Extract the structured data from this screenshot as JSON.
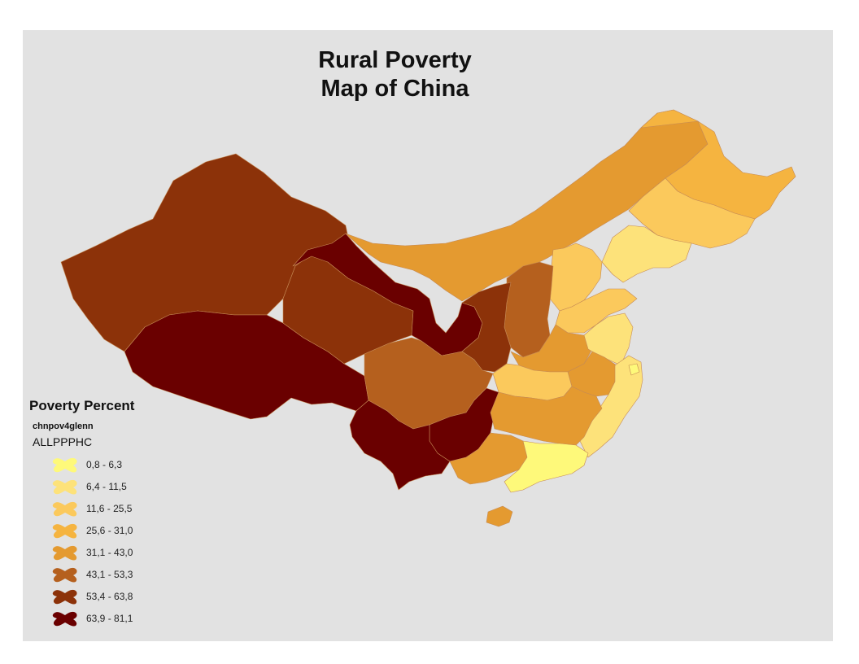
{
  "title": {
    "line1": "Rural Poverty",
    "line2": "Map of China"
  },
  "legend": {
    "heading": "Poverty Percent",
    "layer": "chnpov4glenn",
    "field": "ALLPPPHC",
    "classes": [
      {
        "label": "0,8 - 6,3",
        "color": "#fef97a"
      },
      {
        "label": "6,4 - 11,5",
        "color": "#fde27a"
      },
      {
        "label": "11,6 - 25,5",
        "color": "#fbc95c"
      },
      {
        "label": "25,6 - 31,0",
        "color": "#f5b440"
      },
      {
        "label": "31,1 - 43,0",
        "color": "#e49a30"
      },
      {
        "label": "43,1 - 53,3",
        "color": "#b5601e"
      },
      {
        "label": "53,4 - 63,8",
        "color": "#8c3209"
      },
      {
        "label": "63,9 - 81,1",
        "color": "#6a0000"
      }
    ]
  },
  "colors": {
    "background": "#e2e2e2",
    "border": "#ffffff"
  }
}
